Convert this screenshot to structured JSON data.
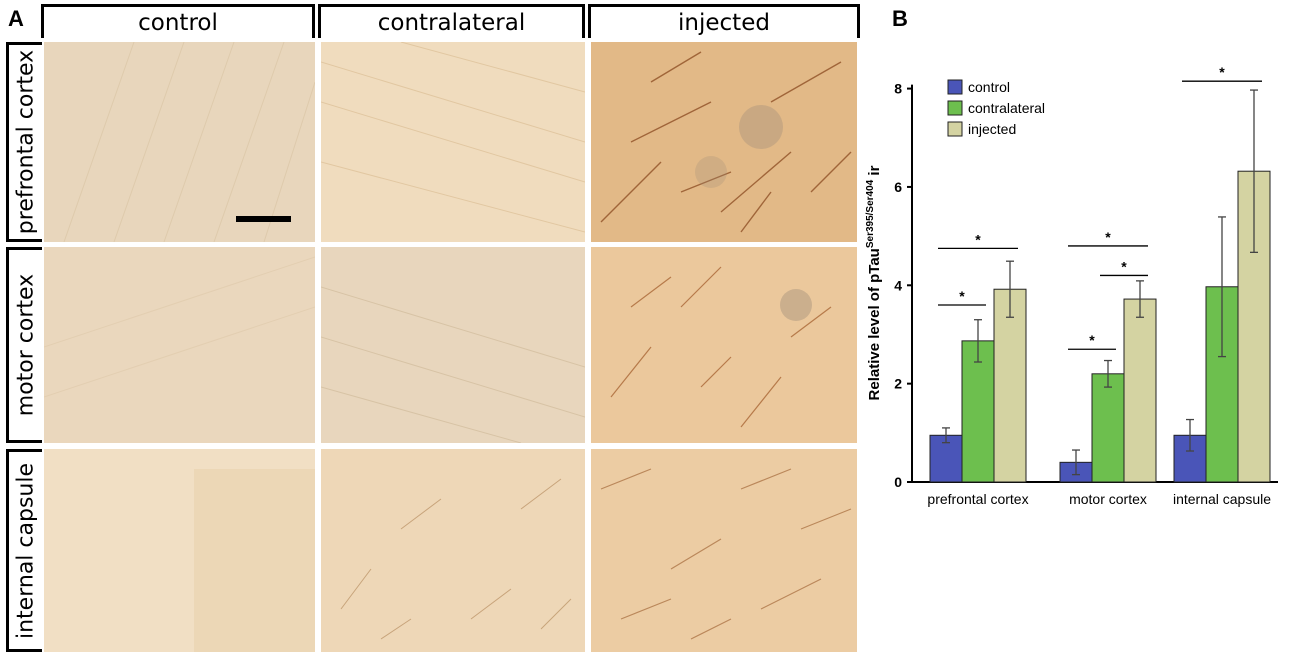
{
  "panel_a": {
    "letter": "A",
    "columns": [
      "control",
      "contralateral",
      "injected"
    ],
    "rows": [
      "prefrontal cortex",
      "motor cortex",
      "internal capsule"
    ]
  },
  "panel_b": {
    "letter": "B"
  },
  "colors": {
    "control": "#4a55b8",
    "contralateral": "#6dbf4e",
    "injected": "#d4d3a2"
  },
  "chart_data": {
    "type": "bar",
    "categories": [
      "prefrontal cortex",
      "motor cortex",
      "internal capsule"
    ],
    "series": [
      {
        "name": "control",
        "values": [
          0.95,
          0.4,
          0.95
        ],
        "errors": [
          0.15,
          0.25,
          0.32
        ]
      },
      {
        "name": "contralateral",
        "values": [
          2.87,
          2.2,
          3.97
        ],
        "errors": [
          0.43,
          0.27,
          1.42
        ]
      },
      {
        "name": "injected",
        "values": [
          3.92,
          3.72,
          6.32
        ],
        "errors": [
          0.57,
          0.37,
          1.65
        ]
      }
    ],
    "ylabel": "Relative level of pTau",
    "ylabel_superscript": "Ser395/Ser404",
    "ylabel_suffix": " ir",
    "ylim": [
      0,
      8.5
    ],
    "yticks": [
      0,
      2,
      4,
      6,
      8
    ],
    "legend_position": "top-left",
    "significance": [
      {
        "category": 0,
        "from": 0,
        "to": 2,
        "label": "*"
      },
      {
        "category": 0,
        "from": 0,
        "to": 1,
        "label": "*"
      },
      {
        "category": 1,
        "from": 0,
        "to": 2,
        "label": "*"
      },
      {
        "category": 1,
        "from": 1,
        "to": 2,
        "label": "*"
      },
      {
        "category": 1,
        "from": 0,
        "to": 1,
        "label": "*"
      },
      {
        "category": 2,
        "from": 0,
        "to": 2,
        "label": "*"
      }
    ]
  }
}
